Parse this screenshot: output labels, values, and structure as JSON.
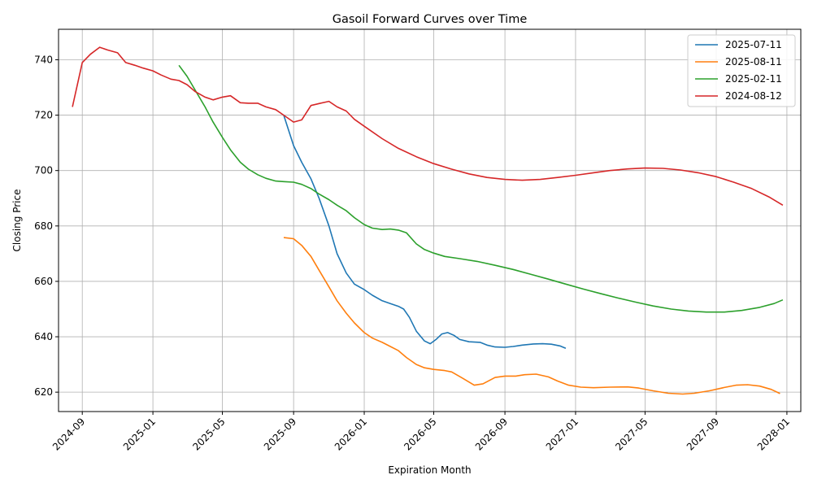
{
  "chart_data": {
    "type": "line",
    "title": "Gasoil Forward Curves over Time",
    "xlabel": "Expiration Month",
    "ylabel": "Closing Price",
    "xlim": [
      "2024-07-22",
      "2028-01-25"
    ],
    "ylim": [
      613,
      751
    ],
    "x_ticks": [
      "2024-09",
      "2025-01",
      "2025-05",
      "2025-09",
      "2026-01",
      "2026-05",
      "2026-09",
      "2027-01",
      "2027-05",
      "2027-09",
      "2028-01"
    ],
    "y_ticks": [
      620,
      640,
      660,
      680,
      700,
      720,
      740
    ],
    "grid": true,
    "legend_position": "top-right",
    "series": [
      {
        "name": "2025-07-11",
        "color": "#1f77b4",
        "points": [
          [
            "2025-08-15",
            720
          ],
          [
            "2025-09-01",
            709
          ],
          [
            "2025-09-15",
            703
          ],
          [
            "2025-10-01",
            697
          ],
          [
            "2025-10-15",
            690
          ],
          [
            "2025-11-01",
            680
          ],
          [
            "2025-11-15",
            670
          ],
          [
            "2025-12-01",
            663
          ],
          [
            "2025-12-15",
            659
          ],
          [
            "2026-01-01",
            657
          ],
          [
            "2026-01-15",
            655
          ],
          [
            "2026-02-01",
            653
          ],
          [
            "2026-02-15",
            652
          ],
          [
            "2026-03-01",
            651
          ],
          [
            "2026-03-10",
            650
          ],
          [
            "2026-03-20",
            647
          ],
          [
            "2026-04-01",
            642
          ],
          [
            "2026-04-15",
            638.5
          ],
          [
            "2026-04-25",
            637.5
          ],
          [
            "2026-05-05",
            639
          ],
          [
            "2026-05-15",
            641
          ],
          [
            "2026-05-25",
            641.5
          ],
          [
            "2026-06-05",
            640.5
          ],
          [
            "2026-06-15",
            639
          ],
          [
            "2026-07-01",
            638.2
          ],
          [
            "2026-07-20",
            638
          ],
          [
            "2026-08-01",
            637
          ],
          [
            "2026-08-15",
            636.3
          ],
          [
            "2026-09-01",
            636.2
          ],
          [
            "2026-09-15",
            636.5
          ],
          [
            "2026-10-01",
            637
          ],
          [
            "2026-10-20",
            637.4
          ],
          [
            "2026-11-05",
            637.5
          ],
          [
            "2026-11-20",
            637.3
          ],
          [
            "2026-12-05",
            636.7
          ],
          [
            "2026-12-15",
            635.8
          ]
        ]
      },
      {
        "name": "2025-08-11",
        "color": "#ff7f0e",
        "points": [
          [
            "2025-08-15",
            675.8
          ],
          [
            "2025-09-01",
            675.4
          ],
          [
            "2025-09-15",
            673
          ],
          [
            "2025-10-01",
            669
          ],
          [
            "2025-10-15",
            664
          ],
          [
            "2025-11-01",
            658
          ],
          [
            "2025-11-15",
            653
          ],
          [
            "2025-12-01",
            648.5
          ],
          [
            "2025-12-15",
            645
          ],
          [
            "2026-01-01",
            641.5
          ],
          [
            "2026-01-15",
            639.5
          ],
          [
            "2026-02-01",
            638
          ],
          [
            "2026-02-15",
            636.5
          ],
          [
            "2026-03-01",
            635
          ],
          [
            "2026-03-15",
            632.5
          ],
          [
            "2026-04-01",
            630
          ],
          [
            "2026-04-15",
            628.8
          ],
          [
            "2026-05-01",
            628.2
          ],
          [
            "2026-05-20",
            627.8
          ],
          [
            "2026-06-01",
            627.3
          ],
          [
            "2026-06-20",
            625
          ],
          [
            "2026-07-10",
            622.5
          ],
          [
            "2026-07-25",
            623
          ],
          [
            "2026-08-15",
            625.3
          ],
          [
            "2026-09-01",
            625.8
          ],
          [
            "2026-09-20",
            625.8
          ],
          [
            "2026-10-05",
            626.3
          ],
          [
            "2026-10-25",
            626.5
          ],
          [
            "2026-11-15",
            625.5
          ],
          [
            "2026-12-01",
            624
          ],
          [
            "2026-12-20",
            622.5
          ],
          [
            "2027-01-10",
            621.8
          ],
          [
            "2027-02-01",
            621.6
          ],
          [
            "2027-03-01",
            621.8
          ],
          [
            "2027-04-01",
            621.9
          ],
          [
            "2027-04-20",
            621.5
          ],
          [
            "2027-05-15",
            620.5
          ],
          [
            "2027-06-10",
            619.6
          ],
          [
            "2027-07-05",
            619.3
          ],
          [
            "2027-07-25",
            619.6
          ],
          [
            "2027-08-20",
            620.5
          ],
          [
            "2027-09-15",
            621.7
          ],
          [
            "2027-10-05",
            622.5
          ],
          [
            "2027-10-25",
            622.7
          ],
          [
            "2027-11-15",
            622.2
          ],
          [
            "2027-12-05",
            621
          ],
          [
            "2027-12-20",
            619.5
          ]
        ]
      },
      {
        "name": "2025-02-11",
        "color": "#2ca02c",
        "points": [
          [
            "2025-02-15",
            738
          ],
          [
            "2025-03-01",
            734
          ],
          [
            "2025-03-15",
            729
          ],
          [
            "2025-04-01",
            723
          ],
          [
            "2025-04-15",
            717.5
          ],
          [
            "2025-05-01",
            712
          ],
          [
            "2025-05-15",
            707.5
          ],
          [
            "2025-06-01",
            703
          ],
          [
            "2025-06-15",
            700.5
          ],
          [
            "2025-07-01",
            698.5
          ],
          [
            "2025-07-15",
            697.2
          ],
          [
            "2025-08-01",
            696.2
          ],
          [
            "2025-08-15",
            696
          ],
          [
            "2025-09-01",
            695.8
          ],
          [
            "2025-09-15",
            695
          ],
          [
            "2025-10-01",
            693.5
          ],
          [
            "2025-10-15",
            691.5
          ],
          [
            "2025-11-01",
            689.5
          ],
          [
            "2025-11-15",
            687.5
          ],
          [
            "2025-12-01",
            685.5
          ],
          [
            "2025-12-15",
            683
          ],
          [
            "2026-01-01",
            680.5
          ],
          [
            "2026-01-15",
            679.2
          ],
          [
            "2026-02-01",
            678.7
          ],
          [
            "2026-02-15",
            678.9
          ],
          [
            "2026-03-01",
            678.5
          ],
          [
            "2026-03-15",
            677.5
          ],
          [
            "2026-04-01",
            673.5
          ],
          [
            "2026-04-15",
            671.5
          ],
          [
            "2026-05-01",
            670.2
          ],
          [
            "2026-05-20",
            669
          ],
          [
            "2026-06-15",
            668.2
          ],
          [
            "2026-07-15",
            667.2
          ],
          [
            "2026-08-15",
            665.8
          ],
          [
            "2026-09-15",
            664.3
          ],
          [
            "2026-10-15",
            662.6
          ],
          [
            "2026-11-15",
            660.8
          ],
          [
            "2026-12-15",
            659
          ],
          [
            "2027-01-15",
            657.2
          ],
          [
            "2027-02-15",
            655.5
          ],
          [
            "2027-03-15",
            654
          ],
          [
            "2027-04-15",
            652.5
          ],
          [
            "2027-05-15",
            651.1
          ],
          [
            "2027-06-15",
            650
          ],
          [
            "2027-07-15",
            649.3
          ],
          [
            "2027-08-15",
            648.9
          ],
          [
            "2027-09-15",
            648.9
          ],
          [
            "2027-10-15",
            649.5
          ],
          [
            "2027-11-15",
            650.6
          ],
          [
            "2027-12-10",
            652
          ],
          [
            "2027-12-25",
            653.3
          ]
        ]
      },
      {
        "name": "2024-08-12",
        "color": "#d62728",
        "points": [
          [
            "2024-08-15",
            723
          ],
          [
            "2024-09-01",
            739
          ],
          [
            "2024-09-15",
            742
          ],
          [
            "2024-10-01",
            744.5
          ],
          [
            "2024-10-15",
            743.5
          ],
          [
            "2024-11-01",
            742.5
          ],
          [
            "2024-11-15",
            739
          ],
          [
            "2024-12-01",
            738
          ],
          [
            "2024-12-15",
            737
          ],
          [
            "2025-01-01",
            736
          ],
          [
            "2025-01-15",
            734.5
          ],
          [
            "2025-02-01",
            733
          ],
          [
            "2025-02-15",
            732.5
          ],
          [
            "2025-03-01",
            731
          ],
          [
            "2025-03-15",
            728.5
          ],
          [
            "2025-04-01",
            726.5
          ],
          [
            "2025-04-15",
            725.5
          ],
          [
            "2025-05-01",
            726.5
          ],
          [
            "2025-05-15",
            727
          ],
          [
            "2025-06-01",
            724.5
          ],
          [
            "2025-06-15",
            724.3
          ],
          [
            "2025-07-01",
            724.3
          ],
          [
            "2025-07-15",
            723
          ],
          [
            "2025-08-01",
            722
          ],
          [
            "2025-08-15",
            720
          ],
          [
            "2025-09-01",
            717.5
          ],
          [
            "2025-09-15",
            718.3
          ],
          [
            "2025-10-01",
            723.5
          ],
          [
            "2025-10-15",
            724.2
          ],
          [
            "2025-11-01",
            725
          ],
          [
            "2025-11-15",
            723
          ],
          [
            "2025-12-01",
            721.5
          ],
          [
            "2025-12-15",
            718.5
          ],
          [
            "2026-01-01",
            716
          ],
          [
            "2026-02-01",
            711.5
          ],
          [
            "2026-03-01",
            708
          ],
          [
            "2026-04-01",
            705
          ],
          [
            "2026-05-01",
            702.5
          ],
          [
            "2026-06-01",
            700.5
          ],
          [
            "2026-07-01",
            698.8
          ],
          [
            "2026-08-01",
            697.5
          ],
          [
            "2026-09-01",
            696.8
          ],
          [
            "2026-10-01",
            696.5
          ],
          [
            "2026-11-01",
            696.8
          ],
          [
            "2026-12-01",
            697.5
          ],
          [
            "2027-01-01",
            698.3
          ],
          [
            "2027-02-01",
            699.2
          ],
          [
            "2027-03-01",
            700
          ],
          [
            "2027-04-01",
            700.6
          ],
          [
            "2027-05-01",
            700.9
          ],
          [
            "2027-06-01",
            700.8
          ],
          [
            "2027-07-01",
            700.2
          ],
          [
            "2027-08-01",
            699.2
          ],
          [
            "2027-09-01",
            697.8
          ],
          [
            "2027-10-01",
            695.8
          ],
          [
            "2027-11-01",
            693.5
          ],
          [
            "2027-12-01",
            690.5
          ],
          [
            "2027-12-25",
            687.5
          ]
        ]
      }
    ]
  }
}
